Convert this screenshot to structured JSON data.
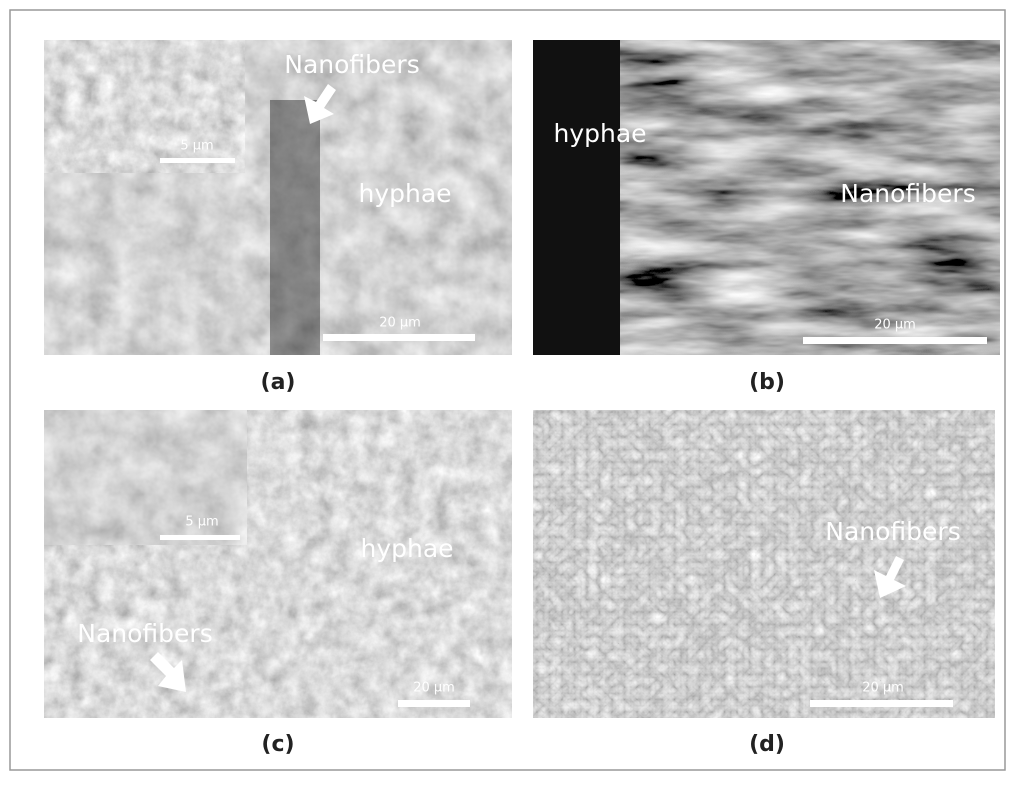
{
  "panels": [
    {
      "caption": "(a)",
      "labels": [
        "Nanofibers",
        "hyphae"
      ],
      "scale_bar": "20 µm",
      "inset_scale_bar": "5 µm"
    },
    {
      "caption": "(b)",
      "labels": [
        "hyphae",
        "Nanofibers"
      ],
      "scale_bar": "20 µm"
    },
    {
      "caption": "(c)",
      "labels": [
        "hyphae",
        "Nanofibers"
      ],
      "scale_bar": "20 µm",
      "inset_scale_bar": "5 µm"
    },
    {
      "caption": "(d)",
      "labels": [
        "Nanofibers"
      ],
      "scale_bar": "20 µm"
    }
  ]
}
